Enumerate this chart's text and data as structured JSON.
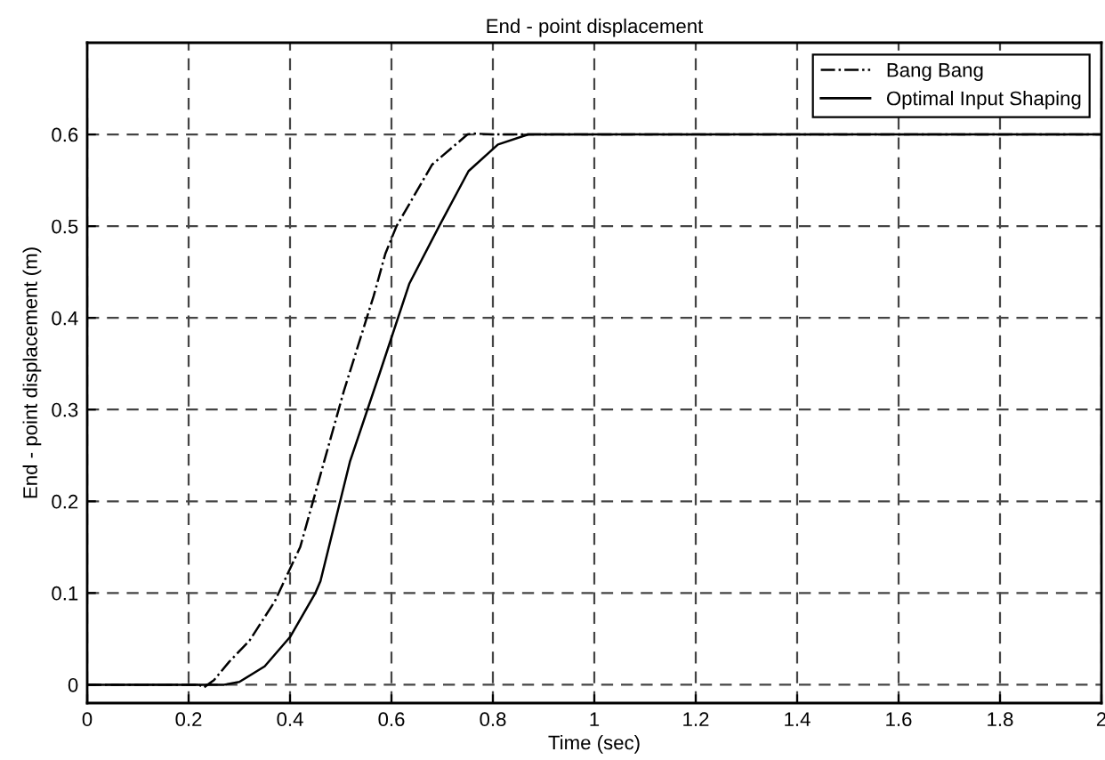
{
  "chart_data": {
    "type": "line",
    "title": "End - point displacement",
    "xlabel": "Time (sec)",
    "ylabel": "End - point displacement (m)",
    "xlim": [
      0,
      2
    ],
    "ylim": [
      -0.02,
      0.7
    ],
    "xticks": [
      0,
      0.2,
      0.4,
      0.6,
      0.8,
      1,
      1.2,
      1.4,
      1.6,
      1.8,
      2
    ],
    "yticks": [
      0,
      0.1,
      0.2,
      0.3,
      0.4,
      0.5,
      0.6
    ],
    "grid": true,
    "legend": "top right",
    "marker": "none",
    "series": [
      {
        "name": "Bang Bang",
        "color": "#000000",
        "line_style": "dashdot",
        "x": [
          0,
          0.22,
          0.23,
          0.25,
          0.28,
          0.32,
          0.37,
          0.42,
          0.46,
          0.506,
          0.565,
          0.588,
          0.61,
          0.68,
          0.75,
          0.76,
          0.8,
          1,
          1.5,
          2
        ],
        "values": [
          0,
          0,
          -0.003,
          0.005,
          0.025,
          0.048,
          0.091,
          0.15,
          0.229,
          0.32,
          0.424,
          0.47,
          0.5,
          0.567,
          0.6,
          0.601,
          0.6,
          0.6,
          0.6,
          0.6
        ]
      },
      {
        "name": "Optimal Input Shaping",
        "color": "#000000",
        "line_style": "solid",
        "x": [
          0,
          0.27,
          0.3,
          0.35,
          0.4,
          0.45,
          0.46,
          0.518,
          0.577,
          0.635,
          0.694,
          0.752,
          0.81,
          0.87,
          0.9,
          1,
          1.5,
          2
        ],
        "values": [
          0,
          0,
          0.003,
          0.02,
          0.052,
          0.1,
          0.113,
          0.243,
          0.34,
          0.437,
          0.5,
          0.56,
          0.589,
          0.6,
          0.6,
          0.6,
          0.6,
          0.6
        ]
      }
    ]
  }
}
